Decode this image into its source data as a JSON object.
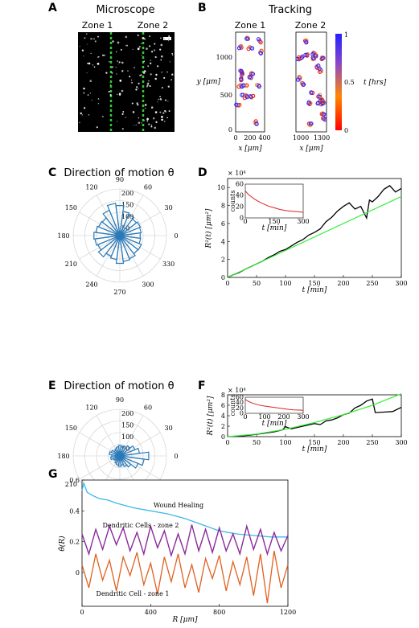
{
  "panel_labels": {
    "A": "A",
    "B": "B",
    "C": "C",
    "D": "D",
    "E": "E",
    "F": "F",
    "G": "G"
  },
  "panel_A": {
    "title": "Microscope",
    "zone1": "Zone 1",
    "zone2": "Zone 2"
  },
  "panel_B": {
    "title": "Tracking",
    "zone1": "Zone 1",
    "zone2": "Zone 2",
    "ylabel": "y [μm]",
    "xlabel_1": "x [μm]",
    "xlabel_2": "x [μm]",
    "xticks_1": [
      "0",
      "200",
      "400"
    ],
    "xticks_2": [
      "1000",
      "1300"
    ],
    "yticks": [
      "0",
      "500",
      "1000"
    ],
    "colorbar": {
      "label": "t [hrs]",
      "ticks": [
        "0",
        "0.5",
        "1"
      ],
      "colors": [
        "#ff0000",
        "#ff8800",
        "#8844cc",
        "#2222ff"
      ]
    }
  },
  "chart_data": [
    {
      "id": "C",
      "type": "polar-histogram",
      "title": "Direction of motion  θ",
      "angle_labels": [
        "90",
        "60",
        "30",
        "0",
        "330",
        "300",
        "270",
        "240",
        "210",
        "180",
        "150",
        "120"
      ],
      "radial_ticks": [
        "50",
        "100",
        "150",
        "200"
      ],
      "rmax": 200,
      "bin_width_deg": 15,
      "bin_centers_deg": [
        0,
        15,
        30,
        45,
        60,
        75,
        90,
        105,
        120,
        135,
        150,
        165,
        180,
        195,
        210,
        225,
        240,
        255,
        270,
        285,
        300,
        315,
        330,
        345
      ],
      "counts": [
        88,
        92,
        95,
        90,
        98,
        105,
        130,
        140,
        118,
        95,
        98,
        104,
        112,
        108,
        102,
        115,
        96,
        104,
        120,
        112,
        108,
        98,
        100,
        90
      ]
    },
    {
      "id": "D",
      "type": "line",
      "ylabel": "R²(t) [μm²]",
      "xlabel": "t [min]",
      "exponent": "× 10⁴",
      "xlim": [
        0,
        300
      ],
      "ylim": [
        0,
        11
      ],
      "xticks": [
        "0",
        "50",
        "100",
        "150",
        "200",
        "250",
        "300"
      ],
      "yticks": [
        "0",
        "2",
        "4",
        "6",
        "8",
        "10"
      ],
      "series": [
        {
          "values": [
            [
              0,
              0
            ],
            [
              10,
              0.3
            ],
            [
              20,
              0.55
            ],
            [
              30,
              0.9
            ],
            [
              40,
              1.2
            ],
            [
              50,
              1.5
            ],
            [
              60,
              1.8
            ],
            [
              70,
              2.2
            ],
            [
              80,
              2.5
            ],
            [
              90,
              2.9
            ],
            [
              100,
              3.1
            ],
            [
              110,
              3.5
            ],
            [
              120,
              3.9
            ],
            [
              130,
              4.2
            ],
            [
              140,
              4.7
            ],
            [
              150,
              5.0
            ],
            [
              160,
              5.4
            ],
            [
              170,
              6.2
            ],
            [
              180,
              6.7
            ],
            [
              190,
              7.4
            ],
            [
              200,
              7.9
            ],
            [
              210,
              8.3
            ],
            [
              220,
              7.6
            ],
            [
              230,
              7.9
            ],
            [
              240,
              6.6
            ],
            [
              245,
              8.6
            ],
            [
              250,
              8.4
            ],
            [
              260,
              9.0
            ],
            [
              270,
              9.8
            ],
            [
              280,
              10.2
            ],
            [
              290,
              9.5
            ],
            [
              300,
              9.9
            ]
          ]
        },
        {
          "values": [
            [
              0,
              0
            ],
            [
              300,
              9.0
            ]
          ]
        }
      ],
      "inset": {
        "xlim": [
          0,
          300
        ],
        "ylim": [
          0,
          60
        ],
        "ylabel": "counts",
        "xlabel": "t [min]",
        "xticks": [
          "0",
          "150",
          "300"
        ],
        "yticks": [
          "0",
          "20",
          "40",
          "60"
        ],
        "values": [
          [
            0,
            48
          ],
          [
            15,
            42
          ],
          [
            30,
            38
          ],
          [
            45,
            34
          ],
          [
            60,
            31
          ],
          [
            80,
            27
          ],
          [
            100,
            24
          ],
          [
            120,
            21
          ],
          [
            150,
            18
          ],
          [
            180,
            15
          ],
          [
            210,
            13
          ],
          [
            240,
            12
          ],
          [
            270,
            11
          ],
          [
            300,
            10
          ]
        ]
      }
    },
    {
      "id": "E",
      "type": "polar-histogram",
      "title": "Direction of motion  θ",
      "angle_labels": [
        "90",
        "60",
        "30",
        "0",
        "330",
        "300",
        "270",
        "240",
        "210",
        "180",
        "150",
        "120"
      ],
      "radial_ticks": [
        "50",
        "100",
        "150",
        "200"
      ],
      "rmax": 200,
      "bin_width_deg": 15,
      "bin_centers_deg": [
        0,
        15,
        30,
        45,
        60,
        75,
        90,
        105,
        120,
        135,
        150,
        165,
        180,
        195,
        210,
        225,
        240,
        255,
        270,
        285,
        300,
        315,
        330,
        345
      ],
      "counts": [
        125,
        85,
        70,
        55,
        45,
        40,
        45,
        40,
        35,
        30,
        40,
        45,
        35,
        40,
        30,
        25,
        35,
        40,
        45,
        40,
        50,
        60,
        85,
        105
      ]
    },
    {
      "id": "F",
      "type": "line",
      "ylabel": "R²(t) [μm²]",
      "xlabel": "t [min]",
      "exponent": "× 10⁴",
      "xlim": [
        0,
        300
      ],
      "ylim": [
        0,
        8
      ],
      "xticks": [
        "0",
        "50",
        "100",
        "150",
        "200",
        "250",
        "300"
      ],
      "yticks": [
        "0",
        "2",
        "4",
        "6",
        "8"
      ],
      "series": [
        {
          "values": [
            [
              0,
              0
            ],
            [
              20,
              0.1
            ],
            [
              40,
              0.3
            ],
            [
              60,
              0.6
            ],
            [
              80,
              0.9
            ],
            [
              95,
              1.3
            ],
            [
              100,
              1.9
            ],
            [
              110,
              1.5
            ],
            [
              130,
              2.0
            ],
            [
              150,
              2.5
            ],
            [
              160,
              2.3
            ],
            [
              170,
              3.0
            ],
            [
              180,
              3.2
            ],
            [
              190,
              3.6
            ],
            [
              200,
              4.2
            ],
            [
              210,
              4.5
            ],
            [
              220,
              5.5
            ],
            [
              230,
              6.0
            ],
            [
              240,
              6.8
            ],
            [
              250,
              7.2
            ],
            [
              255,
              4.6
            ],
            [
              270,
              4.7
            ],
            [
              285,
              4.8
            ],
            [
              300,
              5.6
            ]
          ]
        },
        {
          "values": [
            [
              0,
              0
            ],
            [
              50,
              0.5
            ],
            [
              100,
              1.4
            ],
            [
              150,
              2.7
            ],
            [
              200,
              4.2
            ],
            [
              250,
              6.0
            ],
            [
              300,
              8.2
            ]
          ]
        }
      ],
      "inset": {
        "xlim": [
          0,
          300
        ],
        "ylim": [
          0,
          60
        ],
        "ylabel": "counts",
        "xlabel": "t [min]",
        "xticks": [
          "0",
          "100",
          "200",
          "300"
        ],
        "yticks": [
          "0",
          "20",
          "40",
          "60"
        ],
        "values": [
          [
            0,
            52
          ],
          [
            15,
            45
          ],
          [
            30,
            40
          ],
          [
            50,
            35
          ],
          [
            70,
            31
          ],
          [
            100,
            27
          ],
          [
            130,
            24
          ],
          [
            160,
            21
          ],
          [
            190,
            18
          ],
          [
            220,
            15
          ],
          [
            250,
            13
          ],
          [
            280,
            12
          ],
          [
            300,
            11
          ]
        ]
      }
    },
    {
      "id": "G",
      "type": "line",
      "ylabel": "θ̂(R)",
      "xlabel": "R [μm]",
      "xlim": [
        0,
        1200
      ],
      "ylim": [
        -0.22,
        0.6
      ],
      "xticks": [
        "0",
        "400",
        "800",
        "1200"
      ],
      "yticks": [
        "0",
        "0.2",
        "0.4",
        "0.6"
      ],
      "series": [
        {
          "name": "Wound Healing",
          "values": [
            [
              0,
              0.53
            ],
            [
              10,
              0.58
            ],
            [
              30,
              0.52
            ],
            [
              60,
              0.5
            ],
            [
              100,
              0.48
            ],
            [
              150,
              0.47
            ],
            [
              200,
              0.45
            ],
            [
              300,
              0.42
            ],
            [
              400,
              0.4
            ],
            [
              500,
              0.38
            ],
            [
              600,
              0.35
            ],
            [
              700,
              0.31
            ],
            [
              800,
              0.27
            ],
            [
              900,
              0.25
            ],
            [
              1000,
              0.24
            ],
            [
              1100,
              0.23
            ],
            [
              1200,
              0.23
            ]
          ]
        },
        {
          "name": "Dendritic Cells - zone 2",
          "values": [
            [
              0,
              0.25
            ],
            [
              40,
              0.12
            ],
            [
              80,
              0.28
            ],
            [
              120,
              0.15
            ],
            [
              160,
              0.3
            ],
            [
              200,
              0.18
            ],
            [
              240,
              0.29
            ],
            [
              280,
              0.14
            ],
            [
              320,
              0.26
            ],
            [
              360,
              0.12
            ],
            [
              400,
              0.3
            ],
            [
              440,
              0.16
            ],
            [
              480,
              0.27
            ],
            [
              520,
              0.11
            ],
            [
              560,
              0.25
            ],
            [
              600,
              0.12
            ],
            [
              640,
              0.31
            ],
            [
              680,
              0.14
            ],
            [
              720,
              0.28
            ],
            [
              760,
              0.13
            ],
            [
              800,
              0.29
            ],
            [
              840,
              0.14
            ],
            [
              880,
              0.25
            ],
            [
              920,
              0.12
            ],
            [
              960,
              0.3
            ],
            [
              1000,
              0.15
            ],
            [
              1040,
              0.28
            ],
            [
              1080,
              0.12
            ],
            [
              1120,
              0.26
            ],
            [
              1160,
              0.14
            ],
            [
              1200,
              0.24
            ]
          ]
        },
        {
          "name": "Dendritic Cell - zone 1",
          "values": [
            [
              0,
              0.05
            ],
            [
              40,
              -0.1
            ],
            [
              80,
              0.12
            ],
            [
              120,
              -0.05
            ],
            [
              160,
              0.08
            ],
            [
              200,
              -0.12
            ],
            [
              240,
              0.1
            ],
            [
              280,
              -0.02
            ],
            [
              320,
              0.13
            ],
            [
              360,
              -0.08
            ],
            [
              400,
              0.06
            ],
            [
              440,
              -0.14
            ],
            [
              480,
              0.1
            ],
            [
              520,
              -0.06
            ],
            [
              560,
              0.12
            ],
            [
              600,
              -0.1
            ],
            [
              640,
              0.05
            ],
            [
              680,
              -0.13
            ],
            [
              720,
              0.09
            ],
            [
              760,
              -0.04
            ],
            [
              800,
              0.11
            ],
            [
              840,
              -0.12
            ],
            [
              880,
              0.07
            ],
            [
              920,
              -0.08
            ],
            [
              960,
              0.1
            ],
            [
              1000,
              -0.15
            ],
            [
              1040,
              0.12
            ],
            [
              1080,
              -0.2
            ],
            [
              1120,
              0.14
            ],
            [
              1160,
              -0.1
            ],
            [
              1200,
              0.05
            ]
          ]
        }
      ]
    }
  ]
}
